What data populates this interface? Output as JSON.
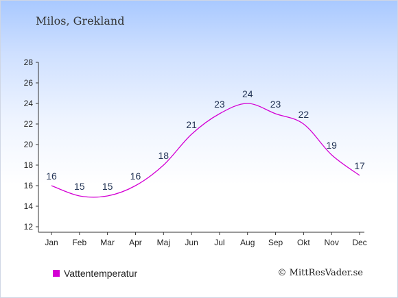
{
  "chart_data": {
    "type": "line",
    "title": "Milos, Grekland",
    "categories": [
      "Jan",
      "Feb",
      "Mar",
      "Apr",
      "Maj",
      "Jun",
      "Jul",
      "Aug",
      "Sep",
      "Okt",
      "Nov",
      "Dec"
    ],
    "series": [
      {
        "name": "Vattentemperatur",
        "values": [
          16,
          15,
          15,
          16,
          18,
          21,
          23,
          24,
          23,
          22,
          19,
          17
        ],
        "color": "#d400d4"
      }
    ],
    "ylim": [
      12,
      28
    ],
    "yticks": [
      12,
      14,
      16,
      18,
      20,
      22,
      24,
      26,
      28
    ],
    "grid": false,
    "legend_position": "bottom-left"
  },
  "credit": "© MittResVader.se"
}
